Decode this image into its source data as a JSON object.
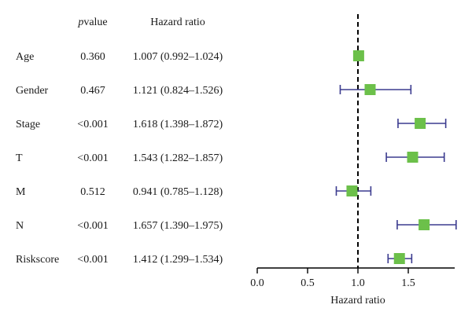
{
  "chart_data": {
    "type": "forest",
    "columns": {
      "variable": "",
      "pvalue_p": "p",
      "pvalue_rest": "value",
      "hr": "Hazard ratio"
    },
    "rows": [
      {
        "variable": "Age",
        "pvalue": "0.360",
        "hr_text": "1.007 (0.992–1.024)",
        "hr": 1.007,
        "lower": 0.992,
        "upper": 1.024
      },
      {
        "variable": "Gender",
        "pvalue": "0.467",
        "hr_text": "1.121 (0.824–1.526)",
        "hr": 1.121,
        "lower": 0.824,
        "upper": 1.526
      },
      {
        "variable": "Stage",
        "pvalue": "<0.001",
        "hr_text": "1.618 (1.398–1.872)",
        "hr": 1.618,
        "lower": 1.398,
        "upper": 1.872
      },
      {
        "variable": "T",
        "pvalue": "<0.001",
        "hr_text": "1.543 (1.282–1.857)",
        "hr": 1.543,
        "lower": 1.282,
        "upper": 1.857
      },
      {
        "variable": "M",
        "pvalue": "0.512",
        "hr_text": "0.941 (0.785–1.128)",
        "hr": 0.941,
        "lower": 0.785,
        "upper": 1.128
      },
      {
        "variable": "N",
        "pvalue": "<0.001",
        "hr_text": "1.657 (1.390–1.975)",
        "hr": 1.657,
        "lower": 1.39,
        "upper": 1.975
      },
      {
        "variable": "Riskscore",
        "pvalue": "<0.001",
        "hr_text": "1.412 (1.299–1.534)",
        "hr": 1.412,
        "lower": 1.299,
        "upper": 1.534
      }
    ],
    "xlabel": "Hazard ratio",
    "xlim": [
      0.0,
      1.95
    ],
    "xticks": [
      "0.0",
      "0.5",
      "1.0",
      "1.5"
    ],
    "reference_line": 1.0,
    "marker_color": "#6cc04a",
    "ci_color": "#3b3b8f"
  }
}
